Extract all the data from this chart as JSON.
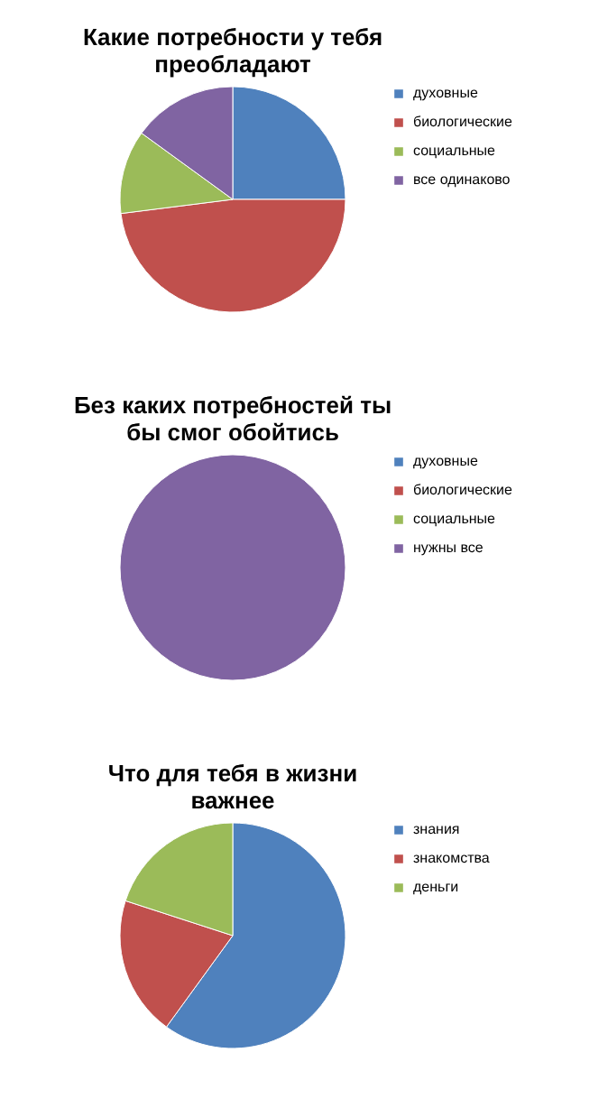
{
  "chart_data": [
    {
      "type": "pie",
      "title": "Какие потребности у тебя преобладают",
      "categories": [
        "духовные",
        "биологические",
        "социальные",
        "все одинаково"
      ],
      "values": [
        25,
        48,
        12,
        15
      ],
      "colors": [
        "#4f81bd",
        "#c0504d",
        "#9bbb59",
        "#8064a2"
      ],
      "legend": "right"
    },
    {
      "type": "pie",
      "title": "Без каких потребностей ты бы смог обойтись",
      "categories": [
        "духовные",
        "биологические",
        "социальные",
        "нужны все"
      ],
      "values": [
        0,
        0,
        0,
        100
      ],
      "colors": [
        "#4f81bd",
        "#c0504d",
        "#9bbb59",
        "#8064a2"
      ],
      "legend": "right"
    },
    {
      "type": "pie",
      "title": "Что для тебя в жизни важнее",
      "categories": [
        "знания",
        "знакомства",
        "деньги"
      ],
      "values": [
        60,
        20,
        20
      ],
      "colors": [
        "#4f81bd",
        "#c0504d",
        "#9bbb59"
      ],
      "legend": "right"
    }
  ]
}
